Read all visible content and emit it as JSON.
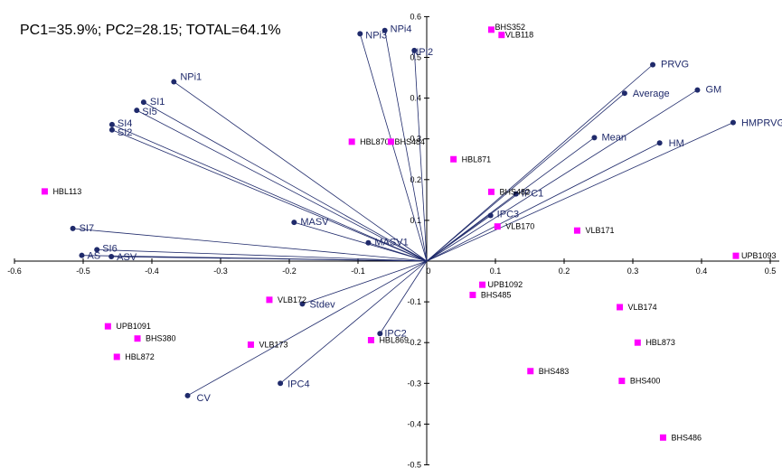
{
  "chart_data": {
    "type": "scatter",
    "title": "PC1=35.9%; PC2=28.15; TOTAL=64.1%",
    "xlim": [
      -0.6,
      0.5
    ],
    "ylim": [
      -0.5,
      0.6
    ],
    "x_ticks": [
      "-0.6",
      "-0.5",
      "-0.4",
      "-0.3",
      "-0.2",
      "-0.1",
      "0",
      "0.1",
      "0.2",
      "0.3",
      "0.4",
      "0.5"
    ],
    "y_ticks": [
      "-0.5",
      "-0.4",
      "-0.3",
      "-0.2",
      "-0.1",
      "0.1",
      "0.2",
      "0.3",
      "0.4",
      "0.5",
      "0.6"
    ],
    "grid": false,
    "colors": {
      "vector": "#1f2a6b",
      "genotype": "#ff00ff"
    },
    "vectors": [
      {
        "name": "NPi1",
        "x": -0.368,
        "y": 0.44
      },
      {
        "name": "SI1",
        "x": -0.412,
        "y": 0.39
      },
      {
        "name": "SI5",
        "x": -0.422,
        "y": 0.37
      },
      {
        "name": "SI4",
        "x": -0.458,
        "y": 0.335
      },
      {
        "name": "SI2",
        "x": -0.458,
        "y": 0.322
      },
      {
        "name": "SI7",
        "x": -0.515,
        "y": 0.08
      },
      {
        "name": "SI6",
        "x": -0.48,
        "y": 0.028
      },
      {
        "name": "AS",
        "x": -0.502,
        "y": 0.014
      },
      {
        "name": "ASV",
        "x": -0.459,
        "y": 0.011
      },
      {
        "name": "MASV",
        "x": -0.193,
        "y": 0.095
      },
      {
        "name": "MASV1",
        "x": -0.085,
        "y": 0.045
      },
      {
        "name": "NPi3",
        "x": -0.097,
        "y": 0.558
      },
      {
        "name": "NPi4",
        "x": -0.061,
        "y": 0.566
      },
      {
        "name": "NPi2",
        "x": -0.018,
        "y": 0.517
      },
      {
        "name": "Stdev",
        "x": -0.181,
        "y": -0.105
      },
      {
        "name": "CV",
        "x": -0.348,
        "y": -0.33
      },
      {
        "name": "IPC4",
        "x": -0.213,
        "y": -0.3
      },
      {
        "name": "IPC2",
        "x": -0.068,
        "y": -0.178
      },
      {
        "name": "PRVG",
        "x": 0.329,
        "y": 0.482
      },
      {
        "name": "Average",
        "x": 0.288,
        "y": 0.412
      },
      {
        "name": "GM",
        "x": 0.394,
        "y": 0.42
      },
      {
        "name": "HMPRVG",
        "x": 0.446,
        "y": 0.34
      },
      {
        "name": "Mean",
        "x": 0.244,
        "y": 0.303
      },
      {
        "name": "HM",
        "x": 0.339,
        "y": 0.29
      },
      {
        "name": "IPC1",
        "x": 0.13,
        "y": 0.165
      },
      {
        "name": "IPC3",
        "x": 0.093,
        "y": 0.112
      }
    ],
    "genotypes": [
      {
        "name": "BHS352",
        "x": 0.094,
        "y": 0.568
      },
      {
        "name": "VLB118",
        "x": 0.109,
        "y": 0.555
      },
      {
        "name": "HBL870",
        "x": -0.109,
        "y": 0.293
      },
      {
        "name": "BHS484",
        "x": -0.052,
        "y": 0.293
      },
      {
        "name": "HBL871",
        "x": 0.039,
        "y": 0.25
      },
      {
        "name": "HBL113",
        "x": -0.556,
        "y": 0.171
      },
      {
        "name": "BHS482",
        "x": 0.094,
        "y": 0.17
      },
      {
        "name": "VLB170",
        "x": 0.103,
        "y": 0.085
      },
      {
        "name": "VLB171",
        "x": 0.219,
        "y": 0.075
      },
      {
        "name": "UPB1093",
        "x": 0.45,
        "y": 0.013
      },
      {
        "name": "UPB1092",
        "x": 0.081,
        "y": -0.058
      },
      {
        "name": "BHS485",
        "x": 0.067,
        "y": -0.083
      },
      {
        "name": "VLB172",
        "x": -0.229,
        "y": -0.095
      },
      {
        "name": "VLB174",
        "x": 0.281,
        "y": -0.113
      },
      {
        "name": "UPB1091",
        "x": -0.464,
        "y": -0.16
      },
      {
        "name": "BHS380",
        "x": -0.421,
        "y": -0.19
      },
      {
        "name": "HBL869",
        "x": -0.081,
        "y": -0.194
      },
      {
        "name": "HBL873",
        "x": 0.307,
        "y": -0.2
      },
      {
        "name": "VLB173",
        "x": -0.256,
        "y": -0.205
      },
      {
        "name": "HBL872",
        "x": -0.451,
        "y": -0.235
      },
      {
        "name": "BHS483",
        "x": 0.151,
        "y": -0.27
      },
      {
        "name": "BHS400",
        "x": 0.284,
        "y": -0.294
      },
      {
        "name": "BHS486",
        "x": 0.344,
        "y": -0.433
      }
    ]
  }
}
